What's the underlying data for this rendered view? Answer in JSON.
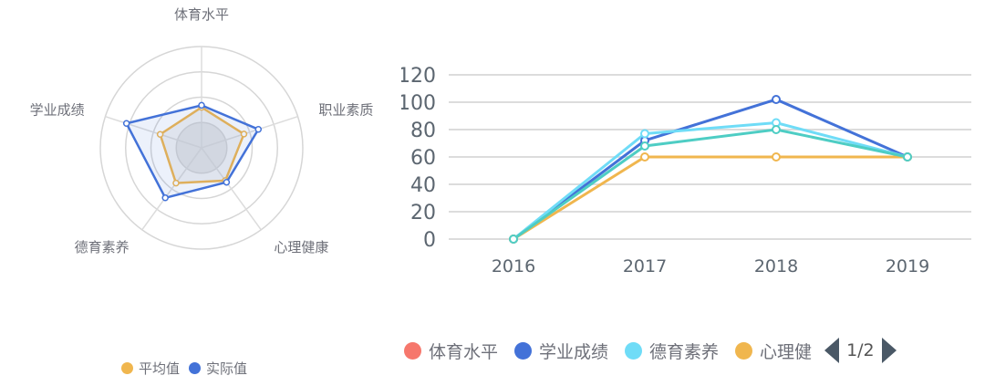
{
  "radar": {
    "chart_data": {
      "type": "radar",
      "indicators": [
        "体育水平",
        "职业素质",
        "心理健康",
        "德育素养",
        "学业成绩"
      ],
      "max": 100,
      "series": [
        {
          "name": "平均值",
          "color": "#f0b64e",
          "values": [
            40,
            44,
            40,
            43,
            43
          ]
        },
        {
          "name": "实际值",
          "color": "#4372d8",
          "values": [
            42,
            59,
            42,
            61,
            78
          ]
        }
      ],
      "legend_position": "bottom"
    }
  },
  "line": {
    "chart_data": {
      "type": "line",
      "categories": [
        "2016",
        "2017",
        "2018",
        "2019"
      ],
      "ylim": [
        0,
        120
      ],
      "yticks": [
        0,
        20,
        40,
        60,
        80,
        100,
        120
      ],
      "grid": true,
      "series": [
        {
          "name": "体育水平",
          "color": "#f6776c",
          "values": [
            null,
            null,
            null,
            null
          ]
        },
        {
          "name": "学业成绩",
          "color": "#4372d8",
          "values": [
            0,
            72,
            102,
            60
          ]
        },
        {
          "name": "德育素养",
          "color": "#6fdcf7",
          "values": [
            0,
            77,
            85,
            60
          ]
        },
        {
          "name": "心理健康",
          "color": "#f0b64e",
          "values": [
            0,
            60,
            60,
            60
          ]
        },
        {
          "name": "职业素质",
          "color": "#4ecdc4",
          "values": [
            0,
            68,
            80,
            60
          ]
        }
      ],
      "legend_position": "bottom",
      "legend_visible_labels": [
        "体育水平",
        "学业成绩",
        "德育素养",
        "心理健"
      ],
      "legend_page": "1/2"
    }
  }
}
